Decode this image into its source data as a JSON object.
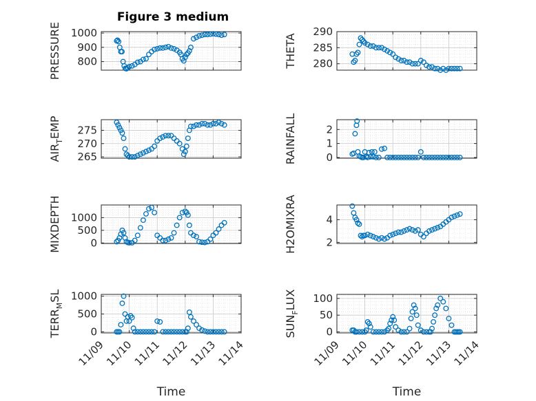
{
  "figure": {
    "title": "Figure 3 medium"
  },
  "colors": {
    "marker": "#0072bd",
    "axis": "#262626",
    "grid": "#d9d9d9"
  },
  "chart_data": [
    {
      "id": "pressure",
      "type": "scatter",
      "ylabel": "PRESSURE",
      "ylim": [
        740,
        1010
      ],
      "yticks": [
        800,
        900,
        1000
      ],
      "x": [
        9.55,
        9.58,
        9.62,
        9.66,
        9.7,
        9.74,
        9.78,
        9.82,
        9.86,
        9.9,
        9.95,
        10.0,
        10.1,
        10.2,
        10.3,
        10.4,
        10.5,
        10.6,
        10.7,
        10.8,
        10.9,
        11.0,
        11.1,
        11.2,
        11.3,
        11.4,
        11.5,
        11.6,
        11.7,
        11.8,
        11.85,
        11.9,
        11.95,
        12.0,
        12.05,
        12.1,
        12.15,
        12.2,
        12.3,
        12.4,
        12.5,
        12.6,
        12.7,
        12.8,
        12.9,
        13.0,
        13.1,
        13.2,
        13.3,
        13.4
      ],
      "y": [
        945,
        950,
        940,
        900,
        870,
        870,
        800,
        770,
        752,
        750,
        755,
        765,
        770,
        780,
        795,
        800,
        815,
        820,
        850,
        870,
        885,
        890,
        895,
        895,
        900,
        905,
        895,
        890,
        880,
        865,
        850,
        820,
        805,
        830,
        850,
        860,
        875,
        900,
        960,
        970,
        980,
        985,
        990,
        990,
        992,
        995,
        993,
        990,
        985,
        990
      ]
    },
    {
      "id": "theta",
      "type": "scatter",
      "ylabel": "THETA",
      "ylim": [
        278,
        290
      ],
      "yticks": [
        280,
        285,
        290
      ],
      "x": [
        9.55,
        9.6,
        9.65,
        9.7,
        9.75,
        9.8,
        9.85,
        9.9,
        9.95,
        10.0,
        10.1,
        10.2,
        10.3,
        10.4,
        10.5,
        10.6,
        10.7,
        10.8,
        10.9,
        11.0,
        11.1,
        11.2,
        11.3,
        11.4,
        11.5,
        11.6,
        11.7,
        11.8,
        11.9,
        12.0,
        12.1,
        12.2,
        12.3,
        12.4,
        12.5,
        12.6,
        12.7,
        12.8,
        12.9,
        13.0,
        13.1,
        13.2,
        13.3,
        13.4
      ],
      "y": [
        283,
        280.5,
        281,
        283,
        283.5,
        286,
        288,
        287.5,
        287,
        286.5,
        286,
        285.5,
        285.5,
        285,
        285,
        285,
        284.5,
        284,
        283.5,
        283,
        282,
        281.5,
        281,
        281,
        280.5,
        280.5,
        280,
        280,
        280,
        281,
        280.5,
        279.5,
        279,
        279,
        278.5,
        278.5,
        278,
        278.5,
        278,
        278.5,
        278.5,
        278.5,
        278.5,
        278.5
      ]
    },
    {
      "id": "air_temp",
      "type": "scatter",
      "ylabel": "AIR",
      "ylabel_sub": "T",
      "ylabel_rest": "EMP",
      "ylim": [
        264.5,
        279
      ],
      "yticks": [
        265,
        270,
        275
      ],
      "x": [
        9.55,
        9.6,
        9.65,
        9.7,
        9.75,
        9.8,
        9.85,
        9.9,
        9.95,
        10.0,
        10.1,
        10.2,
        10.3,
        10.4,
        10.5,
        10.6,
        10.7,
        10.8,
        10.9,
        11.0,
        11.1,
        11.2,
        11.3,
        11.4,
        11.5,
        11.6,
        11.7,
        11.8,
        11.9,
        11.95,
        12.0,
        12.05,
        12.1,
        12.15,
        12.2,
        12.3,
        12.4,
        12.5,
        12.6,
        12.7,
        12.8,
        12.9,
        13.0,
        13.1,
        13.2,
        13.3,
        13.4
      ],
      "y": [
        278,
        277,
        276,
        275,
        274,
        272,
        268,
        266,
        265.5,
        265,
        265,
        265,
        265.5,
        266,
        266.5,
        267,
        267.5,
        268,
        269,
        271,
        272,
        272.5,
        273,
        273,
        273,
        272,
        271,
        270,
        268,
        266,
        267,
        269,
        272,
        275,
        276.5,
        276.5,
        277,
        277,
        277.5,
        277.5,
        277,
        277,
        277.5,
        277.5,
        278,
        277.5,
        277
      ]
    },
    {
      "id": "rainfall",
      "type": "scatter",
      "ylabel": "RAINFALL",
      "ylim": [
        -0.05,
        2.7
      ],
      "yticks": [
        0,
        1,
        2
      ],
      "x": [
        9.55,
        9.6,
        9.65,
        9.7,
        9.72,
        9.75,
        9.8,
        9.85,
        9.9,
        9.95,
        10.0,
        10.05,
        10.1,
        10.15,
        10.2,
        10.25,
        10.3,
        10.35,
        10.4,
        10.5,
        10.6,
        10.7,
        10.8,
        10.9,
        11.0,
        11.1,
        11.2,
        11.3,
        11.4,
        11.5,
        11.6,
        11.7,
        11.8,
        11.9,
        12.0,
        12.1,
        12.2,
        12.3,
        12.4,
        12.5,
        12.6,
        12.7,
        12.8,
        12.9,
        13.0,
        13.1,
        13.2,
        13.3,
        13.4
      ],
      "y": [
        0.25,
        0.3,
        1.7,
        2.3,
        2.6,
        0.4,
        0.1,
        0.05,
        0,
        0,
        0.4,
        0.05,
        0,
        0.35,
        0.05,
        0.4,
        0.05,
        0.4,
        0,
        0,
        0.6,
        0.65,
        0,
        0,
        0,
        0,
        0,
        0,
        0,
        0,
        0,
        0,
        0,
        0,
        0.4,
        0,
        0,
        0,
        0,
        0,
        0,
        0,
        0,
        0,
        0,
        0,
        0,
        0,
        0
      ]
    },
    {
      "id": "mixdepth",
      "type": "scatter",
      "ylabel": "MIXDEPTH",
      "ylim": [
        -20,
        1500
      ],
      "yticks": [
        0,
        500,
        1000
      ],
      "x": [
        9.55,
        9.6,
        9.65,
        9.7,
        9.75,
        9.8,
        9.85,
        9.9,
        9.95,
        10.0,
        10.1,
        10.2,
        10.3,
        10.4,
        10.5,
        10.6,
        10.7,
        10.8,
        10.9,
        11.0,
        11.1,
        11.2,
        11.3,
        11.4,
        11.5,
        11.6,
        11.7,
        11.8,
        11.9,
        12.0,
        12.05,
        12.1,
        12.15,
        12.2,
        12.3,
        12.4,
        12.5,
        12.6,
        12.7,
        12.8,
        12.9,
        13.0,
        13.1,
        13.2,
        13.3,
        13.4
      ],
      "y": [
        50,
        100,
        200,
        350,
        500,
        400,
        200,
        50,
        20,
        10,
        10,
        100,
        300,
        600,
        900,
        1150,
        1350,
        1400,
        1200,
        300,
        200,
        100,
        100,
        150,
        200,
        400,
        700,
        1000,
        1200,
        1250,
        1200,
        1100,
        700,
        400,
        300,
        250,
        50,
        30,
        20,
        50,
        150,
        300,
        400,
        550,
        700,
        800
      ]
    },
    {
      "id": "h2omixra",
      "type": "scatter",
      "ylabel": "H2OMIXRA",
      "ylim": [
        1.9,
        5.3
      ],
      "yticks": [
        2,
        4
      ],
      "x": [
        9.55,
        9.6,
        9.65,
        9.7,
        9.75,
        9.8,
        9.85,
        9.9,
        9.95,
        10.0,
        10.1,
        10.2,
        10.3,
        10.4,
        10.5,
        10.6,
        10.7,
        10.8,
        10.9,
        11.0,
        11.1,
        11.2,
        11.3,
        11.4,
        11.5,
        11.6,
        11.7,
        11.8,
        11.9,
        12.0,
        12.1,
        12.2,
        12.3,
        12.4,
        12.5,
        12.6,
        12.7,
        12.8,
        12.9,
        13.0,
        13.1,
        13.2,
        13.3,
        13.4
      ],
      "y": [
        5.2,
        4.6,
        4.2,
        4.0,
        3.7,
        3.6,
        2.6,
        2.5,
        2.6,
        2.6,
        2.7,
        2.6,
        2.5,
        2.4,
        2.3,
        2.4,
        2.3,
        2.4,
        2.6,
        2.7,
        2.8,
        2.9,
        2.9,
        3.0,
        3.1,
        3.2,
        3.1,
        3.0,
        3.1,
        2.7,
        2.5,
        2.8,
        3.0,
        3.1,
        3.2,
        3.3,
        3.4,
        3.6,
        3.8,
        4.0,
        4.2,
        4.3,
        4.4,
        4.5
      ]
    },
    {
      "id": "terr_msl",
      "type": "scatter",
      "ylabel": "TERR",
      "ylabel_sub": "M",
      "ylabel_rest": "SL",
      "ylim": [
        -30,
        1050
      ],
      "yticks": [
        0,
        500,
        1000
      ],
      "x": [
        9.55,
        9.6,
        9.65,
        9.7,
        9.75,
        9.8,
        9.85,
        9.9,
        9.95,
        10.0,
        10.05,
        10.1,
        10.15,
        10.2,
        10.3,
        10.4,
        10.5,
        10.6,
        10.7,
        10.8,
        10.9,
        11.0,
        11.1,
        11.2,
        11.3,
        11.4,
        11.5,
        11.6,
        11.7,
        11.8,
        11.9,
        12.0,
        12.05,
        12.1,
        12.15,
        12.2,
        12.3,
        12.4,
        12.5,
        12.6,
        12.7,
        12.8,
        12.9,
        13.0,
        13.1,
        13.2,
        13.3,
        13.4
      ],
      "y": [
        0,
        0,
        0,
        200,
        800,
        1000,
        500,
        300,
        420,
        300,
        450,
        400,
        100,
        0,
        0,
        0,
        0,
        0,
        0,
        0,
        0,
        300,
        280,
        0,
        0,
        0,
        0,
        0,
        0,
        0,
        0,
        0,
        0,
        100,
        550,
        420,
        300,
        200,
        100,
        50,
        20,
        0,
        0,
        0,
        0,
        0,
        0,
        0
      ]
    },
    {
      "id": "sun_flux",
      "type": "scatter",
      "ylabel": "SUN",
      "ylabel_sub": "F",
      "ylabel_rest": "LUX",
      "ylim": [
        -3,
        112
      ],
      "yticks": [
        0,
        50,
        100
      ],
      "x": [
        9.55,
        9.6,
        9.65,
        9.7,
        9.8,
        9.9,
        10.0,
        10.05,
        10.1,
        10.15,
        10.2,
        10.3,
        10.4,
        10.5,
        10.6,
        10.7,
        10.8,
        10.85,
        10.9,
        10.95,
        11.0,
        11.05,
        11.1,
        11.2,
        11.3,
        11.4,
        11.5,
        11.6,
        11.65,
        11.7,
        11.75,
        11.8,
        11.85,
        11.9,
        12.0,
        12.1,
        12.2,
        12.3,
        12.35,
        12.4,
        12.45,
        12.5,
        12.55,
        12.6,
        12.7,
        12.8,
        12.9,
        13.0,
        13.1,
        13.2,
        13.25,
        13.3,
        13.35,
        13.4
      ],
      "y": [
        5,
        5,
        0,
        0,
        0,
        0,
        0,
        5,
        30,
        25,
        15,
        0,
        0,
        0,
        0,
        0,
        5,
        10,
        25,
        35,
        45,
        35,
        15,
        5,
        0,
        0,
        0,
        10,
        40,
        60,
        80,
        70,
        50,
        20,
        5,
        0,
        0,
        0,
        0,
        10,
        30,
        50,
        70,
        80,
        100,
        90,
        70,
        40,
        20,
        0,
        0,
        0,
        0,
        0
      ]
    }
  ],
  "shared_x": {
    "xlabel": "Time",
    "xticks": [
      "11/09",
      "11/10",
      "11/11",
      "11/12",
      "11/13",
      "11/14"
    ]
  }
}
